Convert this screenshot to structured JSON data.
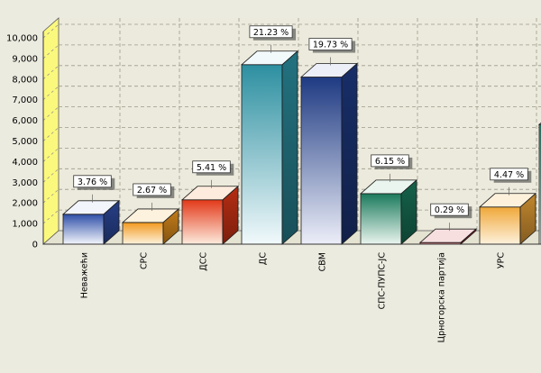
{
  "chart_data": {
    "type": "bar",
    "title": "",
    "xlabel": "",
    "ylabel": "",
    "ylim": [
      0,
      10000
    ],
    "yticks": [
      "0",
      "1,000",
      "2,000",
      "3,000",
      "4,000",
      "5,000",
      "6,000",
      "7,000",
      "8,000",
      "9,000",
      "10,000"
    ],
    "grid": true,
    "categories": [
      "Неважећи",
      "СРС",
      "ДСС",
      "ДС",
      "СВМ",
      "СПС-ПУПС-ЈС",
      "Црногорска партија",
      "УРС",
      ""
    ],
    "values": [
      1450,
      1050,
      2150,
      8700,
      8100,
      2450,
      80,
      1800,
      5800
    ],
    "labels": [
      "3.76 %",
      "2.67 %",
      "5.41 %",
      "21.23 %",
      "19.73 %",
      "6.15 %",
      "0.29 %",
      "4.47 %",
      ""
    ],
    "colors": [
      [
        "#2f4fa8",
        "#f3f5fc"
      ],
      [
        "#f29a1f",
        "#fdf2dd"
      ],
      [
        "#e23818",
        "#fdebdd"
      ],
      [
        "#2c8fa0",
        "#f1f9fb"
      ],
      [
        "#1e3a82",
        "#eceef8"
      ],
      [
        "#1a7a5c",
        "#eaf5ef"
      ],
      [
        "#b8202a",
        "#f7dfe0"
      ],
      [
        "#f0a83a",
        "#fdf1dc"
      ],
      [
        "#2aa78a",
        "#e6f6f0"
      ]
    ]
  }
}
